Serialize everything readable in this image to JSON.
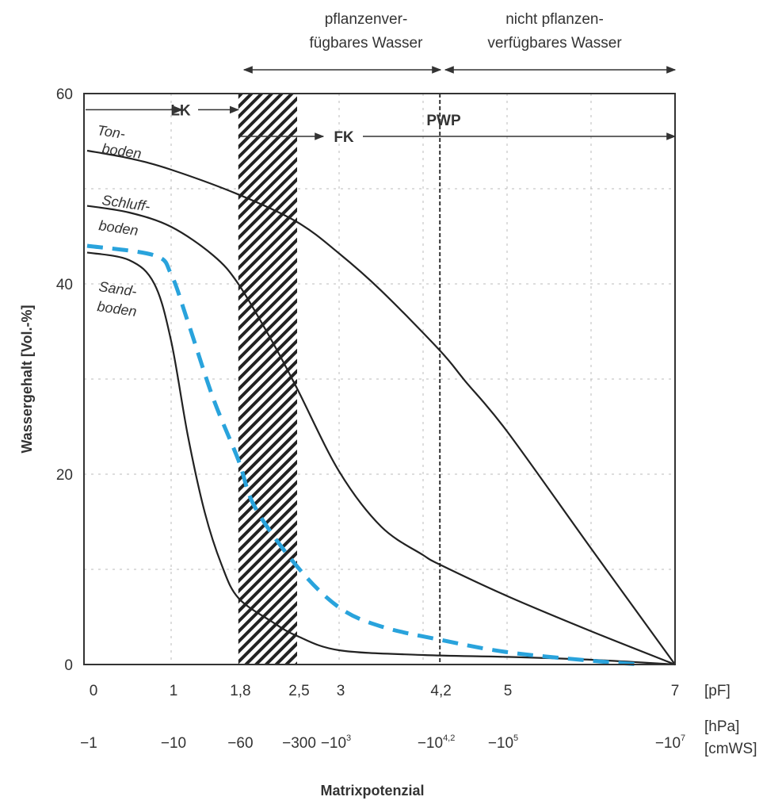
{
  "chart_data": {
    "type": "line",
    "xlabel": "Matrixpotenzial",
    "ylabel": "Wassergehalt [Vol.-%]",
    "xlim": [
      0,
      7
    ],
    "ylim": [
      0,
      60
    ],
    "grid": true,
    "x_ticks_pf": [
      "0",
      "1",
      "1,8",
      "2,5",
      "3",
      "4,2",
      "5",
      "7"
    ],
    "x_tick_values": [
      0,
      1,
      1.8,
      2.5,
      3,
      4.2,
      5,
      7
    ],
    "x_unit_pf": "[pF]",
    "x_ticks_hpa": [
      {
        "base": "−1",
        "exp": ""
      },
      {
        "base": "−10",
        "exp": ""
      },
      {
        "base": "−60",
        "exp": ""
      },
      {
        "base": "−300",
        "exp": ""
      },
      {
        "base": "−10",
        "exp": "3"
      },
      {
        "base": "−10",
        "exp": "4,2"
      },
      {
        "base": "−10",
        "exp": "5"
      },
      {
        "base": "−10",
        "exp": "7"
      }
    ],
    "x_unit_hpa": "[hPa]",
    "x_unit_cmws": "[cmWS]",
    "y_ticks": [
      "0",
      "20",
      "40",
      "60"
    ],
    "y_tick_values": [
      0,
      20,
      40,
      60
    ],
    "series": [
      {
        "name_lines": [
          "Ton-",
          "boden"
        ],
        "color": "#222222",
        "style": "solid",
        "x": [
          0,
          0.5,
          1,
          1.8,
          2.5,
          3,
          3.5,
          4.2,
          4.5,
          5,
          6,
          7
        ],
        "y": [
          54,
          53.2,
          52,
          49.4,
          46.5,
          43.2,
          39.3,
          33,
          29.8,
          24.5,
          12.2,
          0
        ]
      },
      {
        "name_lines": [
          "Schluff-",
          "boden"
        ],
        "color": "#222222",
        "style": "solid",
        "x": [
          0,
          0.5,
          1,
          1.5,
          1.8,
          2.2,
          2.5,
          3,
          3.5,
          4,
          4.2,
          5,
          6,
          7
        ],
        "y": [
          48.2,
          47.5,
          46,
          43,
          40,
          34,
          29,
          20.3,
          14.5,
          11.5,
          10.5,
          7.2,
          3.5,
          0
        ]
      },
      {
        "name_lines": [
          "Sand-",
          "boden"
        ],
        "color": "#222222",
        "style": "solid",
        "x": [
          0,
          0.5,
          0.8,
          1,
          1.2,
          1.4,
          1.6,
          1.8,
          2.2,
          2.5,
          3,
          4,
          5,
          6,
          7
        ],
        "y": [
          43.3,
          42.5,
          40,
          34,
          24,
          16,
          10.5,
          7,
          4.5,
          3,
          1.5,
          1,
          0.8,
          0.5,
          0
        ]
      },
      {
        "color": "#29a3dc",
        "style": "dashed",
        "x": [
          0,
          0.8,
          1,
          1.2,
          1.5,
          1.8,
          2,
          2.5,
          3,
          3.5,
          4.2,
          5,
          6,
          6.6
        ],
        "y": [
          44,
          43,
          41,
          36,
          28,
          21.5,
          16.5,
          10.3,
          6,
          4,
          2.6,
          1.3,
          0.4,
          0
        ]
      }
    ],
    "hatched_band_pf": [
      1.8,
      2.5
    ],
    "pwp_line_pf": 4.2,
    "annotations": {
      "lk": "LK",
      "fk": "FK",
      "pwp": "PWP",
      "plant_available": [
        "pflanzenver-",
        "fügbares Wasser"
      ],
      "not_plant_available": [
        "nicht pflanzen-",
        "verfügbares Wasser"
      ]
    }
  }
}
